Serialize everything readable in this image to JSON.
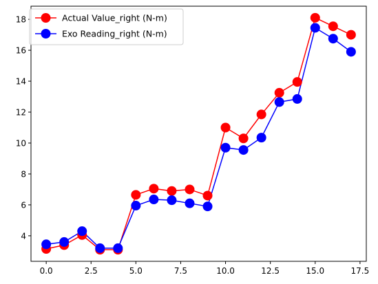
{
  "chart_data": {
    "type": "line",
    "x": [
      0,
      1,
      2,
      3,
      4,
      5,
      6,
      7,
      8,
      9,
      10,
      11,
      12,
      13,
      14,
      15,
      16,
      17
    ],
    "series": [
      {
        "name": "Actual Value_right (N-m)",
        "color": "#ff0000",
        "values": [
          3.15,
          3.4,
          4.05,
          3.1,
          3.1,
          6.65,
          7.05,
          6.9,
          7.0,
          6.6,
          11.0,
          10.3,
          11.85,
          13.25,
          13.95,
          18.1,
          17.55,
          17.0
        ]
      },
      {
        "name": "Exo Reading_right (N-m)",
        "color": "#0000ff",
        "values": [
          3.45,
          3.6,
          4.3,
          3.2,
          3.2,
          5.95,
          6.35,
          6.3,
          6.1,
          5.9,
          9.7,
          9.55,
          10.35,
          12.65,
          12.85,
          17.45,
          16.75,
          15.9
        ]
      }
    ],
    "xlim": [
      -0.85,
      17.85
    ],
    "ylim": [
      2.35,
      18.85
    ],
    "xticks": [
      "0.0",
      "2.5",
      "5.0",
      "7.5",
      "10.0",
      "12.5",
      "15.0",
      "17.5"
    ],
    "yticks": [
      "4",
      "6",
      "8",
      "10",
      "12",
      "14",
      "16",
      "18"
    ],
    "marker": "circle",
    "legend": "top-left",
    "grid": false
  }
}
